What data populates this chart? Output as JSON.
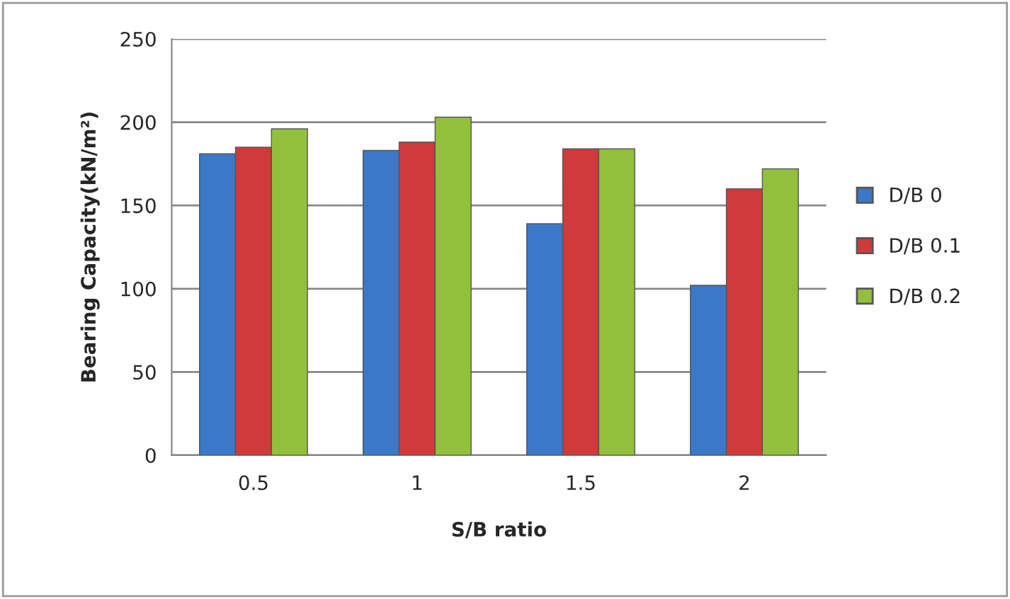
{
  "chart_data": {
    "type": "bar",
    "xlabel": "S/B ratio",
    "ylabel": "Bearing Capacity(kN/m²)",
    "categories": [
      "0.5",
      "1",
      "1.5",
      "2"
    ],
    "series": [
      {
        "name": "D/B 0",
        "color": "#3b78c8",
        "values": [
          181,
          183,
          139,
          102
        ]
      },
      {
        "name": "D/B 0.1",
        "color": "#d03a3a",
        "values": [
          185,
          188,
          184,
          160
        ]
      },
      {
        "name": "D/B 0.2",
        "color": "#92c03c",
        "values": [
          196,
          203,
          184,
          172
        ]
      }
    ],
    "ylim": [
      0,
      250
    ],
    "yticks": [
      0,
      50,
      100,
      150,
      200,
      250
    ],
    "grid": "y",
    "legend": "right"
  }
}
